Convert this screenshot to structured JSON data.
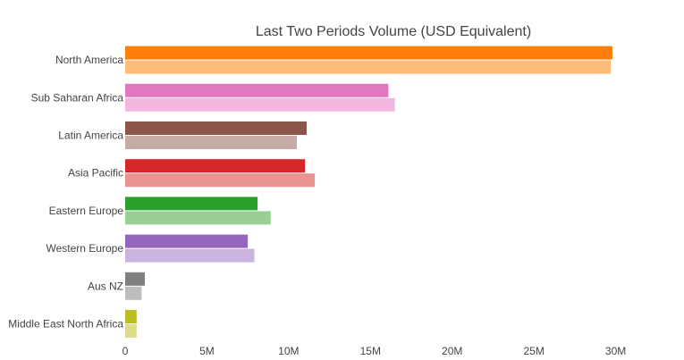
{
  "chart_data": {
    "type": "bar",
    "orientation": "horizontal",
    "title": "Last Two Periods Volume (USD Equivalent)",
    "xlabel": "",
    "ylabel": "",
    "xlim": [
      0,
      31500000
    ],
    "x_ticks": [
      {
        "value": 0,
        "label": "0"
      },
      {
        "value": 5000000,
        "label": "5M"
      },
      {
        "value": 10000000,
        "label": "10M"
      },
      {
        "value": 15000000,
        "label": "15M"
      },
      {
        "value": 20000000,
        "label": "20M"
      },
      {
        "value": 25000000,
        "label": "25M"
      },
      {
        "value": 30000000,
        "label": "30M"
      }
    ],
    "grid": false,
    "legend": "none",
    "categories": [
      {
        "label": "North America",
        "values": [
          29800000,
          29700000
        ],
        "colors": [
          "#ff7f0e",
          "#ffbb78"
        ]
      },
      {
        "label": "Sub Saharan Africa",
        "values": [
          16100000,
          16500000
        ],
        "colors": [
          "#e377c2",
          "#f2b7de"
        ]
      },
      {
        "label": "Latin America",
        "values": [
          11100000,
          10500000
        ],
        "colors": [
          "#8c564b",
          "#c5aaa5"
        ]
      },
      {
        "label": "Asia Pacific",
        "values": [
          11000000,
          11600000
        ],
        "colors": [
          "#d62728",
          "#ea9393"
        ]
      },
      {
        "label": "Eastern Europe",
        "values": [
          8100000,
          8900000
        ],
        "colors": [
          "#2ca02c",
          "#98d094"
        ]
      },
      {
        "label": "Western Europe",
        "values": [
          7500000,
          7900000
        ],
        "colors": [
          "#9467bd",
          "#c9b3df"
        ]
      },
      {
        "label": "Aus NZ",
        "values": [
          1200000,
          1000000
        ],
        "colors": [
          "#7f7f7f",
          "#bdbdbd"
        ]
      },
      {
        "label": "Middle East North Africa",
        "values": [
          700000,
          700000
        ],
        "colors": [
          "#bcbd22",
          "#dedb8c"
        ]
      }
    ]
  }
}
